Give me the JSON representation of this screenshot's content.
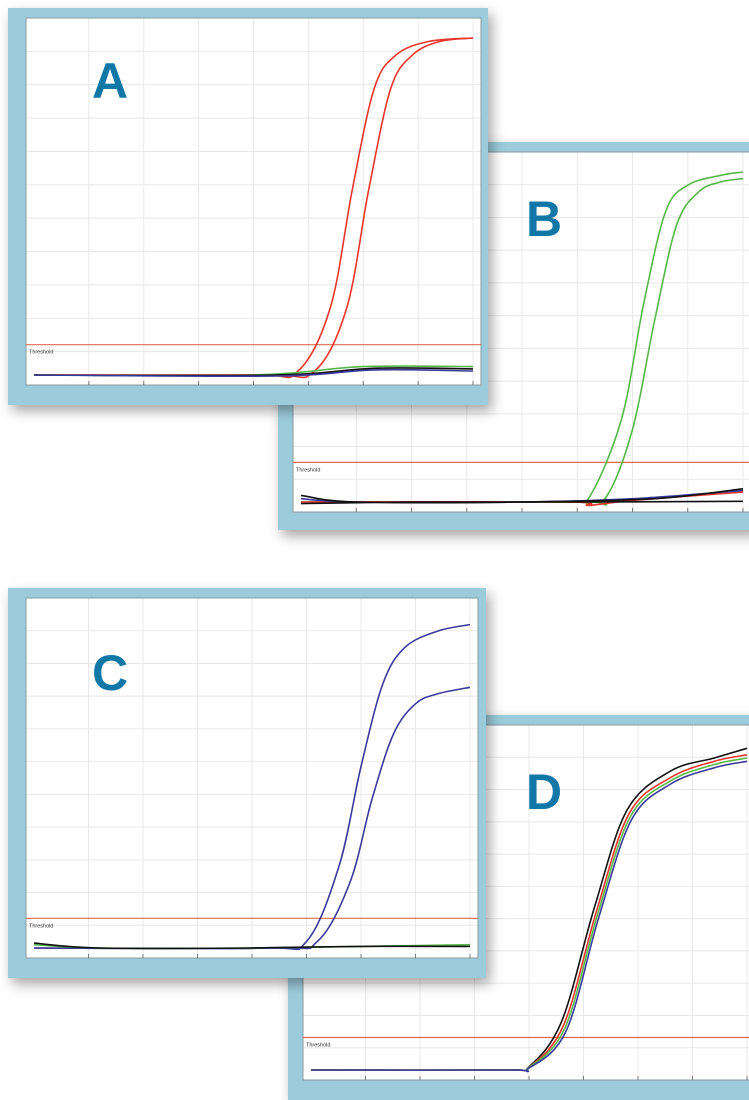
{
  "panels": [
    {
      "id": "B",
      "letter": "B"
    },
    {
      "id": "D",
      "letter": "D"
    },
    {
      "id": "A",
      "letter": "A"
    },
    {
      "id": "C",
      "letter": "C"
    }
  ],
  "colors": {
    "frame": "#9cccdb",
    "plot_bg": "#ffffff",
    "grid": "#e8e8e8",
    "threshold": "#e06a50",
    "letter": "#1177a6",
    "red": "#e8352a",
    "green": "#55b847",
    "blue": "#3a3a9a",
    "black": "#111111"
  },
  "chart_data": [
    {
      "id": "A",
      "type": "line",
      "title": "",
      "threshold_label": "Threshold",
      "xlim": [
        0,
        40
      ],
      "ylim": [
        0,
        1
      ],
      "grid": true,
      "threshold": 0.09,
      "x_ticks": [
        5,
        10,
        15,
        20,
        25,
        30,
        35,
        40
      ],
      "series": [
        {
          "color": "red",
          "values": [
            [
              0,
              0.0
            ],
            [
              20,
              0.0
            ],
            [
              24,
              0.01
            ],
            [
              27,
              0.2
            ],
            [
              29,
              0.55
            ],
            [
              31,
              0.85
            ],
            [
              33,
              0.95
            ],
            [
              36,
              0.99
            ],
            [
              40,
              1.0
            ]
          ]
        },
        {
          "color": "red",
          "values": [
            [
              0,
              0.0
            ],
            [
              21,
              0.0
            ],
            [
              25.5,
              0.01
            ],
            [
              28.5,
              0.2
            ],
            [
              30.5,
              0.55
            ],
            [
              32.5,
              0.85
            ],
            [
              34.5,
              0.95
            ],
            [
              37,
              0.99
            ],
            [
              40,
              1.0
            ]
          ]
        },
        {
          "color": "green",
          "values": [
            [
              0,
              0.0
            ],
            [
              20,
              0.0
            ],
            [
              30,
              0.025
            ],
            [
              40,
              0.025
            ]
          ]
        },
        {
          "color": "black",
          "values": [
            [
              0,
              0.0
            ],
            [
              22,
              0.0
            ],
            [
              31,
              0.02
            ],
            [
              40,
              0.018
            ]
          ]
        },
        {
          "color": "blue",
          "values": [
            [
              0,
              0.0
            ],
            [
              22,
              -0.003
            ],
            [
              31,
              0.015
            ],
            [
              40,
              0.012
            ]
          ]
        }
      ]
    },
    {
      "id": "B",
      "type": "line",
      "title": "",
      "threshold_label": "Threshold",
      "xlim": [
        0,
        40
      ],
      "ylim": [
        0,
        1
      ],
      "grid": true,
      "threshold": 0.12,
      "x_ticks": [
        5,
        10,
        15,
        20,
        25,
        30,
        35,
        40
      ],
      "series": [
        {
          "color": "green",
          "values": [
            [
              0,
              0.0
            ],
            [
              24,
              0.0
            ],
            [
              26,
              0.01
            ],
            [
              29,
              0.25
            ],
            [
              31,
              0.6
            ],
            [
              33,
              0.88
            ],
            [
              35,
              0.96
            ],
            [
              38,
              0.99
            ],
            [
              40,
              1.0
            ]
          ]
        },
        {
          "color": "green",
          "values": [
            [
              0,
              0.0
            ],
            [
              25,
              0.0
            ],
            [
              27.5,
              0.01
            ],
            [
              30,
              0.22
            ],
            [
              32,
              0.55
            ],
            [
              34,
              0.84
            ],
            [
              36,
              0.94
            ],
            [
              38,
              0.97
            ],
            [
              40,
              0.98
            ]
          ]
        },
        {
          "color": "red",
          "values": [
            [
              0,
              0.0
            ],
            [
              24,
              0.0
            ],
            [
              26,
              -0.01
            ],
            [
              30,
              0.005
            ],
            [
              40,
              0.03
            ]
          ]
        },
        {
          "color": "blue",
          "values": [
            [
              0,
              0.01
            ],
            [
              5,
              0.0
            ],
            [
              20,
              0.0
            ],
            [
              30,
              0.01
            ],
            [
              40,
              0.035
            ]
          ]
        },
        {
          "color": "black",
          "values": [
            [
              0,
              0.02
            ],
            [
              5,
              0.0
            ],
            [
              20,
              0.0
            ],
            [
              32,
              0.01
            ],
            [
              40,
              0.04
            ]
          ]
        },
        {
          "color": "black",
          "values": [
            [
              0,
              -0.005
            ],
            [
              10,
              0.0
            ],
            [
              24,
              0.0
            ],
            [
              40,
              0.002
            ]
          ]
        }
      ]
    },
    {
      "id": "C",
      "type": "line",
      "title": "",
      "threshold_label": "Threshold",
      "xlim": [
        0,
        40
      ],
      "ylim": [
        0,
        1
      ],
      "grid": true,
      "threshold": 0.09,
      "x_ticks": [
        5,
        10,
        15,
        20,
        25,
        30,
        35,
        40
      ],
      "series": [
        {
          "color": "blue",
          "values": [
            [
              0,
              0.0
            ],
            [
              21,
              0.0
            ],
            [
              25,
              0.02
            ],
            [
              28,
              0.25
            ],
            [
              30,
              0.55
            ],
            [
              32,
              0.8
            ],
            [
              34,
              0.91
            ],
            [
              37,
              0.96
            ],
            [
              40,
              0.98
            ]
          ]
        },
        {
          "color": "blue",
          "values": [
            [
              0,
              0.0
            ],
            [
              22,
              0.0
            ],
            [
              26,
              0.02
            ],
            [
              29,
              0.2
            ],
            [
              31,
              0.45
            ],
            [
              33,
              0.65
            ],
            [
              35,
              0.74
            ],
            [
              37,
              0.77
            ],
            [
              40,
              0.79
            ]
          ]
        },
        {
          "color": "green",
          "values": [
            [
              0,
              0.01
            ],
            [
              6,
              0.0
            ],
            [
              20,
              0.0
            ],
            [
              30,
              0.005
            ],
            [
              40,
              0.01
            ]
          ]
        },
        {
          "color": "black",
          "values": [
            [
              0,
              0.015
            ],
            [
              6,
              0.0
            ],
            [
              20,
              0.0
            ],
            [
              30,
              0.005
            ],
            [
              40,
              0.005
            ]
          ]
        }
      ]
    },
    {
      "id": "D",
      "type": "line",
      "title": "",
      "threshold_label": "Threshold",
      "xlim": [
        0,
        40
      ],
      "ylim": [
        0,
        1
      ],
      "grid": true,
      "threshold": 0.1,
      "x_ticks": [
        5,
        10,
        15,
        20,
        25,
        30,
        35,
        40
      ],
      "series": [
        {
          "color": "black",
          "values": [
            [
              0,
              0.0
            ],
            [
              18,
              0.0
            ],
            [
              20,
              0.01
            ],
            [
              23,
              0.15
            ],
            [
              26,
              0.5
            ],
            [
              29,
              0.8
            ],
            [
              33,
              0.92
            ],
            [
              37,
              0.96
            ],
            [
              40,
              0.99
            ]
          ]
        },
        {
          "color": "red",
          "values": [
            [
              0,
              0.0
            ],
            [
              18,
              0.0
            ],
            [
              20,
              0.008
            ],
            [
              23.2,
              0.14
            ],
            [
              26.2,
              0.49
            ],
            [
              29.2,
              0.79
            ],
            [
              33,
              0.9
            ],
            [
              37,
              0.95
            ],
            [
              40,
              0.97
            ]
          ]
        },
        {
          "color": "green",
          "values": [
            [
              0,
              0.0
            ],
            [
              18,
              0.0
            ],
            [
              20,
              0.008
            ],
            [
              23.3,
              0.13
            ],
            [
              26.3,
              0.48
            ],
            [
              29.3,
              0.78
            ],
            [
              33,
              0.89
            ],
            [
              37,
              0.94
            ],
            [
              40,
              0.96
            ]
          ]
        },
        {
          "color": "blue",
          "values": [
            [
              0,
              0.0
            ],
            [
              18,
              0.0
            ],
            [
              20,
              0.006
            ],
            [
              23.4,
              0.12
            ],
            [
              26.4,
              0.47
            ],
            [
              29.4,
              0.77
            ],
            [
              33,
              0.88
            ],
            [
              37,
              0.93
            ],
            [
              40,
              0.95
            ]
          ]
        }
      ]
    }
  ]
}
